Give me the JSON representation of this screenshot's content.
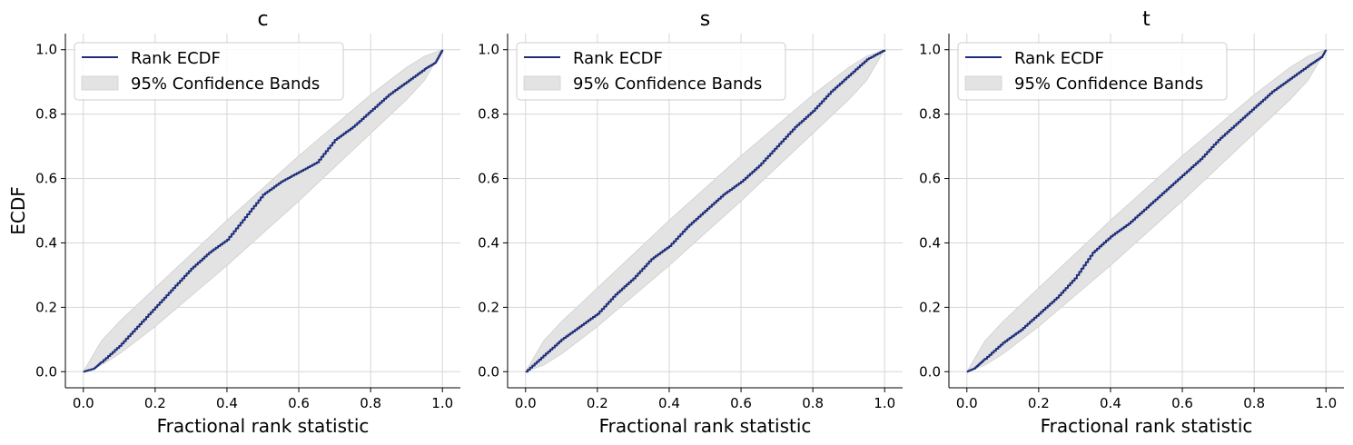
{
  "colors": {
    "line": "#1f2e7a",
    "band_fill": "#e3e3e3",
    "band_edge": "#cfcfcf",
    "grid": "#d6d6d6"
  },
  "chart_data": [
    {
      "type": "line",
      "title": "c",
      "xlabel": "Fractional rank statistic",
      "ylabel": "ECDF",
      "xlim": [
        -0.05,
        1.05
      ],
      "ylim": [
        -0.05,
        1.05
      ],
      "xticks": [
        "0.0",
        "0.2",
        "0.4",
        "0.6",
        "0.8",
        "1.0"
      ],
      "yticks": [
        "0.0",
        "0.2",
        "0.4",
        "0.6",
        "0.8",
        "1.0"
      ],
      "grid": true,
      "legend": {
        "placement": "top-left",
        "entries": [
          "Rank ECDF",
          "95% Confidence Bands"
        ]
      },
      "series": [
        {
          "name": "Rank ECDF",
          "x": [
            0.0,
            0.03,
            0.05,
            0.1,
            0.15,
            0.2,
            0.25,
            0.3,
            0.35,
            0.4,
            0.45,
            0.5,
            0.55,
            0.6,
            0.65,
            0.7,
            0.75,
            0.8,
            0.85,
            0.9,
            0.95,
            0.98,
            1.0
          ],
          "y": [
            0.0,
            0.01,
            0.03,
            0.08,
            0.14,
            0.2,
            0.26,
            0.32,
            0.37,
            0.41,
            0.48,
            0.55,
            0.59,
            0.62,
            0.65,
            0.72,
            0.76,
            0.81,
            0.86,
            0.9,
            0.94,
            0.96,
            1.0
          ]
        },
        {
          "name": "95% Confidence Bands",
          "x": [
            0.0,
            0.05,
            0.1,
            0.2,
            0.3,
            0.4,
            0.5,
            0.6,
            0.7,
            0.8,
            0.9,
            0.95,
            1.0
          ],
          "lower": [
            0.0,
            0.02,
            0.055,
            0.14,
            0.235,
            0.33,
            0.43,
            0.53,
            0.635,
            0.74,
            0.845,
            0.905,
            1.0
          ],
          "upper": [
            0.0,
            0.095,
            0.155,
            0.26,
            0.365,
            0.47,
            0.57,
            0.67,
            0.765,
            0.86,
            0.945,
            0.98,
            1.0
          ]
        }
      ]
    },
    {
      "type": "line",
      "title": "s",
      "xlabel": "Fractional rank statistic",
      "ylabel": "",
      "xlim": [
        -0.05,
        1.05
      ],
      "ylim": [
        -0.05,
        1.05
      ],
      "xticks": [
        "0.0",
        "0.2",
        "0.4",
        "0.6",
        "0.8",
        "1.0"
      ],
      "yticks": [
        "0.0",
        "0.2",
        "0.4",
        "0.6",
        "0.8",
        "1.0"
      ],
      "grid": true,
      "legend": {
        "placement": "top-left",
        "entries": [
          "Rank ECDF",
          "95% Confidence Bands"
        ]
      },
      "series": [
        {
          "name": "Rank ECDF",
          "x": [
            0.0,
            0.05,
            0.1,
            0.15,
            0.2,
            0.25,
            0.3,
            0.35,
            0.4,
            0.45,
            0.5,
            0.55,
            0.6,
            0.65,
            0.7,
            0.75,
            0.8,
            0.85,
            0.9,
            0.95,
            1.0
          ],
          "y": [
            0.0,
            0.05,
            0.1,
            0.14,
            0.18,
            0.24,
            0.29,
            0.35,
            0.39,
            0.45,
            0.5,
            0.55,
            0.59,
            0.64,
            0.7,
            0.76,
            0.81,
            0.87,
            0.92,
            0.97,
            1.0
          ]
        },
        {
          "name": "95% Confidence Bands",
          "x": [
            0.0,
            0.05,
            0.1,
            0.2,
            0.3,
            0.4,
            0.5,
            0.6,
            0.7,
            0.8,
            0.9,
            0.95,
            1.0
          ],
          "lower": [
            0.0,
            0.02,
            0.055,
            0.14,
            0.235,
            0.33,
            0.43,
            0.53,
            0.635,
            0.74,
            0.845,
            0.905,
            1.0
          ],
          "upper": [
            0.0,
            0.095,
            0.155,
            0.26,
            0.365,
            0.47,
            0.57,
            0.67,
            0.765,
            0.86,
            0.945,
            0.98,
            1.0
          ]
        }
      ]
    },
    {
      "type": "line",
      "title": "t",
      "xlabel": "Fractional rank statistic",
      "ylabel": "",
      "xlim": [
        -0.05,
        1.05
      ],
      "ylim": [
        -0.05,
        1.05
      ],
      "xticks": [
        "0.0",
        "0.2",
        "0.4",
        "0.6",
        "0.8",
        "1.0"
      ],
      "yticks": [
        "0.0",
        "0.2",
        "0.4",
        "0.6",
        "0.8",
        "1.0"
      ],
      "grid": true,
      "legend": {
        "placement": "top-left",
        "entries": [
          "Rank ECDF",
          "95% Confidence Bands"
        ]
      },
      "series": [
        {
          "name": "Rank ECDF",
          "x": [
            0.0,
            0.02,
            0.05,
            0.1,
            0.15,
            0.2,
            0.25,
            0.3,
            0.35,
            0.4,
            0.45,
            0.5,
            0.55,
            0.6,
            0.65,
            0.7,
            0.75,
            0.8,
            0.85,
            0.9,
            0.95,
            0.99,
            1.0
          ],
          "y": [
            0.0,
            0.01,
            0.04,
            0.09,
            0.13,
            0.18,
            0.23,
            0.29,
            0.37,
            0.42,
            0.46,
            0.51,
            0.56,
            0.61,
            0.66,
            0.72,
            0.77,
            0.82,
            0.87,
            0.91,
            0.95,
            0.98,
            1.0
          ]
        },
        {
          "name": "95% Confidence Bands",
          "x": [
            0.0,
            0.05,
            0.1,
            0.2,
            0.3,
            0.4,
            0.5,
            0.6,
            0.7,
            0.8,
            0.9,
            0.95,
            1.0
          ],
          "lower": [
            0.0,
            0.02,
            0.055,
            0.14,
            0.235,
            0.33,
            0.43,
            0.53,
            0.635,
            0.74,
            0.845,
            0.905,
            1.0
          ],
          "upper": [
            0.0,
            0.095,
            0.155,
            0.26,
            0.365,
            0.47,
            0.57,
            0.67,
            0.765,
            0.86,
            0.945,
            0.98,
            1.0
          ]
        }
      ]
    }
  ]
}
